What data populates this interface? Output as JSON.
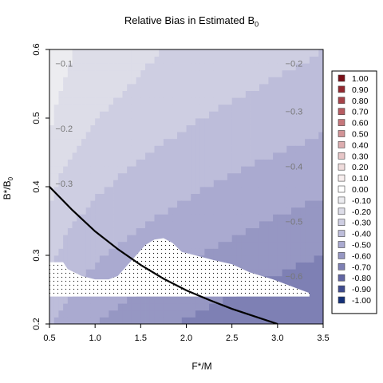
{
  "chart_data": {
    "type": "heatmap",
    "title": "Relative Bias in Estimated B",
    "title_subscript": "0",
    "xlabel": "F*/M",
    "ylabel": "B*/B",
    "ylabel_subscript": "0",
    "xlim": [
      0.5,
      3.5
    ],
    "ylim": [
      0.2,
      0.6
    ],
    "xticks": [
      "0.5",
      "1.0",
      "1.5",
      "2.0",
      "2.5",
      "3.0",
      "3.5"
    ],
    "yticks": [
      "0.2",
      "0.3",
      "0.4",
      "0.5",
      "0.6"
    ],
    "contour_labels": [
      {
        "text": "−0.1",
        "x": 0.66,
        "y": 0.575
      },
      {
        "text": "−0.2",
        "x": 3.18,
        "y": 0.575
      },
      {
        "text": "−0.2",
        "x": 0.66,
        "y": 0.48
      },
      {
        "text": "−0.3",
        "x": 3.18,
        "y": 0.505
      },
      {
        "text": "−0.4",
        "x": 3.18,
        "y": 0.425
      },
      {
        "text": "−0.3",
        "x": 0.66,
        "y": 0.4
      },
      {
        "text": "−0.5",
        "x": 3.18,
        "y": 0.345
      },
      {
        "text": "−0.6",
        "x": 3.18,
        "y": 0.265
      }
    ],
    "curve": [
      [
        0.5,
        0.4
      ],
      [
        0.75,
        0.366
      ],
      [
        1.0,
        0.335
      ],
      [
        1.25,
        0.309
      ],
      [
        1.5,
        0.286
      ],
      [
        1.75,
        0.266
      ],
      [
        2.0,
        0.249
      ],
      [
        2.25,
        0.235
      ],
      [
        2.5,
        0.222
      ],
      [
        2.75,
        0.211
      ],
      [
        3.0,
        0.2
      ]
    ],
    "stippled_boundary": [
      [
        0.5,
        0.29
      ],
      [
        0.65,
        0.29
      ],
      [
        0.7,
        0.28
      ],
      [
        0.85,
        0.27
      ],
      [
        1.0,
        0.265
      ],
      [
        1.15,
        0.265
      ],
      [
        1.25,
        0.27
      ],
      [
        1.35,
        0.285
      ],
      [
        1.45,
        0.3
      ],
      [
        1.55,
        0.315
      ],
      [
        1.65,
        0.323
      ],
      [
        1.75,
        0.325
      ],
      [
        1.85,
        0.318
      ],
      [
        1.95,
        0.305
      ],
      [
        2.1,
        0.3
      ],
      [
        2.3,
        0.293
      ],
      [
        2.5,
        0.287
      ],
      [
        2.7,
        0.275
      ],
      [
        2.95,
        0.265
      ],
      [
        3.15,
        0.255
      ],
      [
        3.35,
        0.245
      ],
      [
        3.35,
        0.24
      ]
    ],
    "stippled_bottom": 0.24,
    "legend": {
      "placement": "right",
      "entries": [
        {
          "label": "1.00",
          "color": "#7a0f18"
        },
        {
          "label": "0.90",
          "color": "#93282f"
        },
        {
          "label": "0.80",
          "color": "#a64349"
        },
        {
          "label": "0.70",
          "color": "#b65c62"
        },
        {
          "label": "0.60",
          "color": "#c5777b"
        },
        {
          "label": "0.50",
          "color": "#d19396"
        },
        {
          "label": "0.40",
          "color": "#ddadaf"
        },
        {
          "label": "0.30",
          "color": "#e7c6c7"
        },
        {
          "label": "0.20",
          "color": "#efdcdc"
        },
        {
          "label": "0.10",
          "color": "#f7eeee"
        },
        {
          "label": "0.00",
          "color": "#ffffff"
        },
        {
          "label": "-0.10",
          "color": "#ececf0"
        },
        {
          "label": "-0.20",
          "color": "#dddde8"
        },
        {
          "label": "-0.30",
          "color": "#cecee2"
        },
        {
          "label": "-0.40",
          "color": "#bdbdda"
        },
        {
          "label": "-0.50",
          "color": "#aaaad0"
        },
        {
          "label": "-0.60",
          "color": "#9697c3"
        },
        {
          "label": "-0.70",
          "color": "#7e80b4"
        },
        {
          "label": "-0.80",
          "color": "#6266a3"
        },
        {
          "label": "-0.90",
          "color": "#3f4b8f"
        },
        {
          "label": "-1.00",
          "color": "#143078"
        }
      ]
    }
  }
}
